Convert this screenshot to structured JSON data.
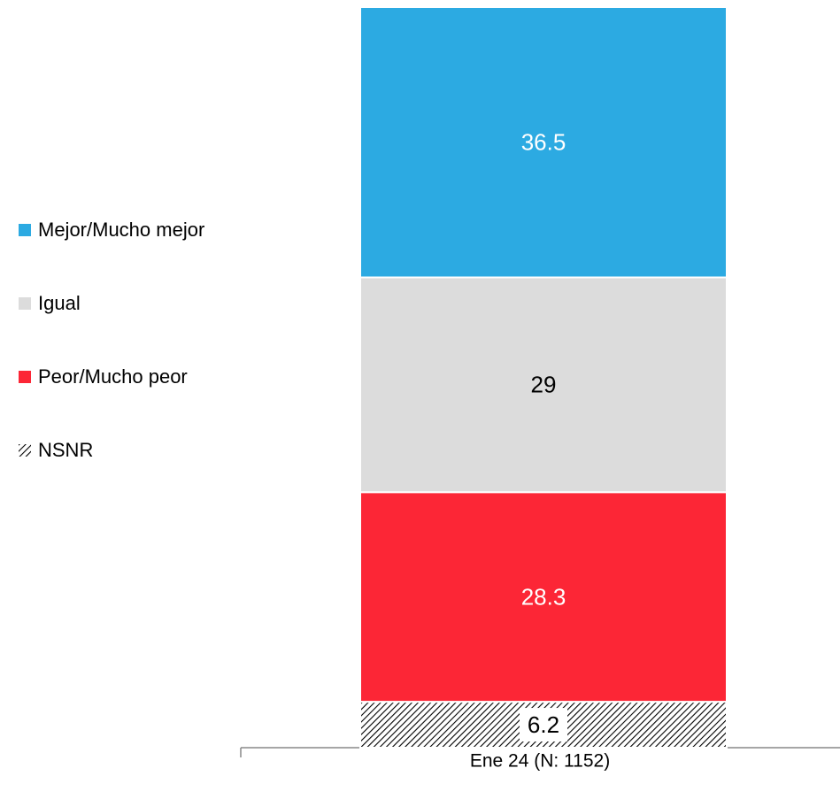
{
  "chart_data": {
    "type": "stacked_bar",
    "categories": [
      "Ene 24 (N: 1152)"
    ],
    "series": [
      {
        "name": "Mejor/Mucho mejor",
        "color": "#2caae2",
        "label_color": "#ffffff",
        "values": [
          36.5
        ]
      },
      {
        "name": "Igual",
        "color": "#dcdcdc",
        "label_color": "#000000",
        "values": [
          29
        ]
      },
      {
        "name": "Peor/Mucho peor",
        "color": "#fc2636",
        "label_color": "#ffffff",
        "values": [
          28.3
        ]
      },
      {
        "name": "NSNR",
        "color": "#000000",
        "pattern": "hatch",
        "label_color": "#000000",
        "values": [
          6.2
        ]
      }
    ],
    "legend": "left"
  }
}
